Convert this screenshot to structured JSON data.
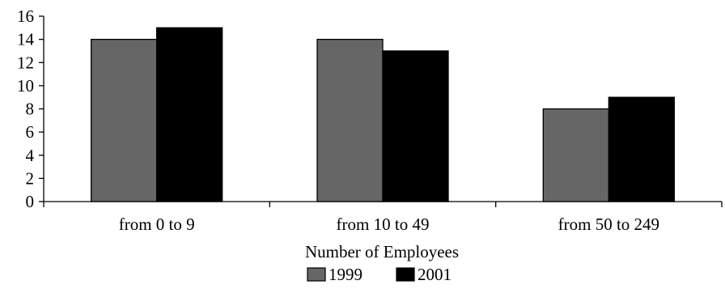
{
  "chart_data": {
    "type": "bar",
    "title": "",
    "xlabel": "Number of Employees",
    "ylabel": "",
    "categories": [
      "from 0 to 9",
      "from 10 to 49",
      "from 50 to 249"
    ],
    "series": [
      {
        "name": "1999",
        "values": [
          14,
          14,
          8
        ],
        "color": "#666666"
      },
      {
        "name": "2001",
        "values": [
          15,
          13,
          9
        ],
        "color": "#000000"
      }
    ],
    "ylim": [
      0,
      16
    ],
    "yticks": [
      0,
      2,
      4,
      6,
      8,
      10,
      12,
      14,
      16
    ],
    "grid": false,
    "legend": "bottom-center"
  }
}
